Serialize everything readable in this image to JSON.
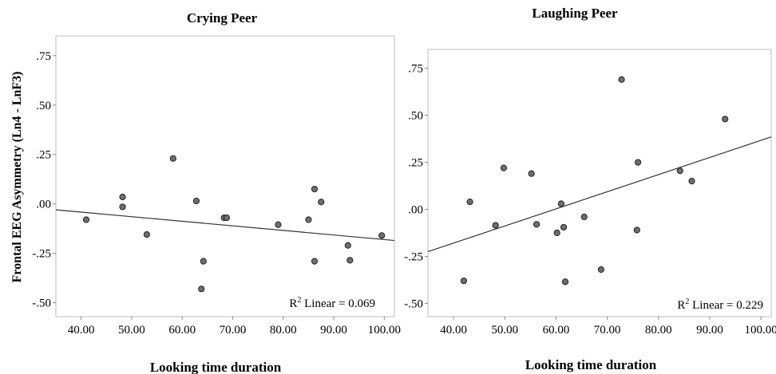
{
  "chart_data": [
    {
      "type": "scatter",
      "title": "Crying Peer",
      "xlabel": "Looking time duration",
      "ylabel": "Frontal EEG Asymmetry (Ln4 - LnF3)",
      "xlim": [
        35,
        102
      ],
      "ylim": [
        -0.57,
        0.85
      ],
      "x_ticks": [
        "40.00",
        "50.00",
        "60.00",
        "70.00",
        "80.00",
        "90.00",
        "100.00"
      ],
      "y_ticks": [
        ".75",
        ".50",
        ".25",
        ".00",
        "-.25",
        "-.50"
      ],
      "r2_base": "R",
      "r2_sup": "2",
      "r2_text": " Linear = 0.069",
      "fit_line": [
        [
          35,
          -0.03
        ],
        [
          102,
          -0.185
        ]
      ],
      "points": [
        [
          41,
          -0.08
        ],
        [
          48.2,
          0.035
        ],
        [
          48.2,
          -0.015
        ],
        [
          53,
          -0.155
        ],
        [
          58.2,
          0.23
        ],
        [
          62.8,
          0.015
        ],
        [
          63.8,
          -0.43
        ],
        [
          64.2,
          -0.29
        ],
        [
          68.3,
          -0.07
        ],
        [
          68.8,
          -0.07
        ],
        [
          79,
          -0.105
        ],
        [
          85,
          -0.08
        ],
        [
          86.2,
          0.075
        ],
        [
          86.2,
          -0.29
        ],
        [
          87.5,
          0.01
        ],
        [
          92.8,
          -0.21
        ],
        [
          93.2,
          -0.285
        ],
        [
          99.5,
          -0.16
        ]
      ]
    },
    {
      "type": "scatter",
      "title": "Laughing Peer",
      "xlabel": "Looking time duration",
      "ylabel": "",
      "xlim": [
        35,
        102
      ],
      "ylim": [
        -0.57,
        0.85
      ],
      "x_ticks": [
        "40.00",
        "50.00",
        "60.00",
        "70.00",
        "80.00",
        "90.00",
        "100.00"
      ],
      "y_ticks": [
        ".75",
        ".50",
        ".25",
        ".00",
        "-.25",
        "-.50"
      ],
      "r2_base": "R",
      "r2_sup": "2",
      "r2_text": " Linear = 0.229",
      "fit_line": [
        [
          35,
          -0.225
        ],
        [
          102,
          0.385
        ]
      ],
      "points": [
        [
          42,
          -0.38
        ],
        [
          43.2,
          0.04
        ],
        [
          48.2,
          -0.085
        ],
        [
          49.8,
          0.22
        ],
        [
          55.2,
          0.19
        ],
        [
          56.2,
          -0.08
        ],
        [
          60.2,
          -0.125
        ],
        [
          61,
          0.03
        ],
        [
          61.5,
          -0.095
        ],
        [
          61.8,
          -0.385
        ],
        [
          65.5,
          -0.04
        ],
        [
          68.8,
          -0.32
        ],
        [
          72.8,
          0.69
        ],
        [
          75.8,
          -0.11
        ],
        [
          76,
          0.25
        ],
        [
          84.2,
          0.205
        ],
        [
          86.5,
          0.15
        ],
        [
          93,
          0.48
        ]
      ]
    }
  ]
}
